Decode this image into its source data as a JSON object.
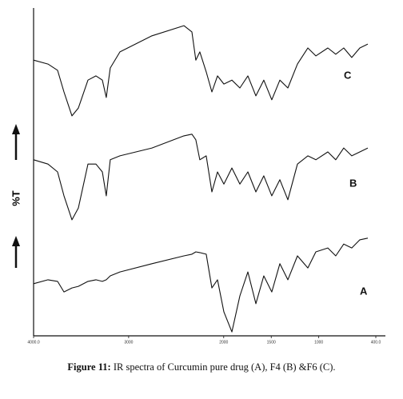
{
  "chart_data": {
    "type": "line",
    "ylabel": "%T",
    "caption_label": "Figure 11:",
    "caption_text": " IR spectra of Curcumin pure drug (A), F4 (B) &F6 (C).",
    "xlim": [
      4000,
      400
    ],
    "ylim": [
      0,
      100
    ],
    "xticks": [
      {
        "value": 4000,
        "label": "4000.0"
      },
      3000,
      2000,
      1500,
      1000,
      {
        "value": 400,
        "label": "400.0"
      }
    ],
    "x": [
      4000,
      3849,
      3748,
      3680,
      3596,
      3529,
      3428,
      3344,
      3277,
      3235,
      3193,
      3092,
      2755,
      2419,
      2335,
      2293,
      2251,
      2184,
      2124,
      2065,
      1998,
      1914,
      1830,
      1746,
      1662,
      1578,
      1494,
      1409,
      1325,
      1224,
      1115,
      1031,
      905,
      821,
      737,
      653,
      568,
      484
    ],
    "series": [
      {
        "name": "C",
        "color": "#111111",
        "values": [
          84.1,
          82.9,
          81.0,
          74.4,
          67.1,
          69.5,
          78.0,
          79.3,
          78.0,
          72.7,
          81.7,
          86.6,
          91.5,
          94.6,
          92.7,
          84.1,
          86.6,
          80.5,
          74.4,
          79.3,
          76.8,
          78.0,
          75.6,
          79.3,
          73.2,
          78.0,
          72.0,
          78.0,
          75.6,
          82.9,
          87.8,
          85.4,
          87.8,
          85.9,
          87.8,
          84.9,
          87.8,
          89.0
        ]
      },
      {
        "name": "B",
        "color": "#111111",
        "values": [
          53.7,
          52.4,
          50.0,
          42.7,
          35.4,
          39.0,
          52.4,
          52.4,
          50.0,
          42.7,
          53.7,
          54.9,
          57.3,
          61.0,
          61.5,
          59.8,
          53.7,
          54.9,
          43.9,
          50.0,
          46.3,
          51.2,
          46.3,
          50.0,
          43.9,
          48.8,
          42.7,
          47.6,
          41.5,
          52.4,
          54.9,
          53.7,
          56.1,
          53.7,
          57.3,
          54.9,
          56.1,
          57.3
        ]
      },
      {
        "name": "A",
        "color": "#111111",
        "values": [
          15.9,
          17.1,
          16.6,
          13.4,
          14.6,
          15.1,
          16.6,
          17.1,
          16.6,
          17.1,
          18.3,
          19.5,
          22.0,
          24.4,
          24.9,
          25.6,
          25.4,
          24.9,
          14.6,
          17.1,
          7.3,
          1.2,
          12.2,
          19.5,
          9.8,
          18.3,
          13.4,
          22.0,
          17.1,
          24.4,
          20.7,
          25.6,
          26.8,
          24.4,
          28.0,
          26.8,
          29.3,
          29.8
        ]
      }
    ]
  }
}
